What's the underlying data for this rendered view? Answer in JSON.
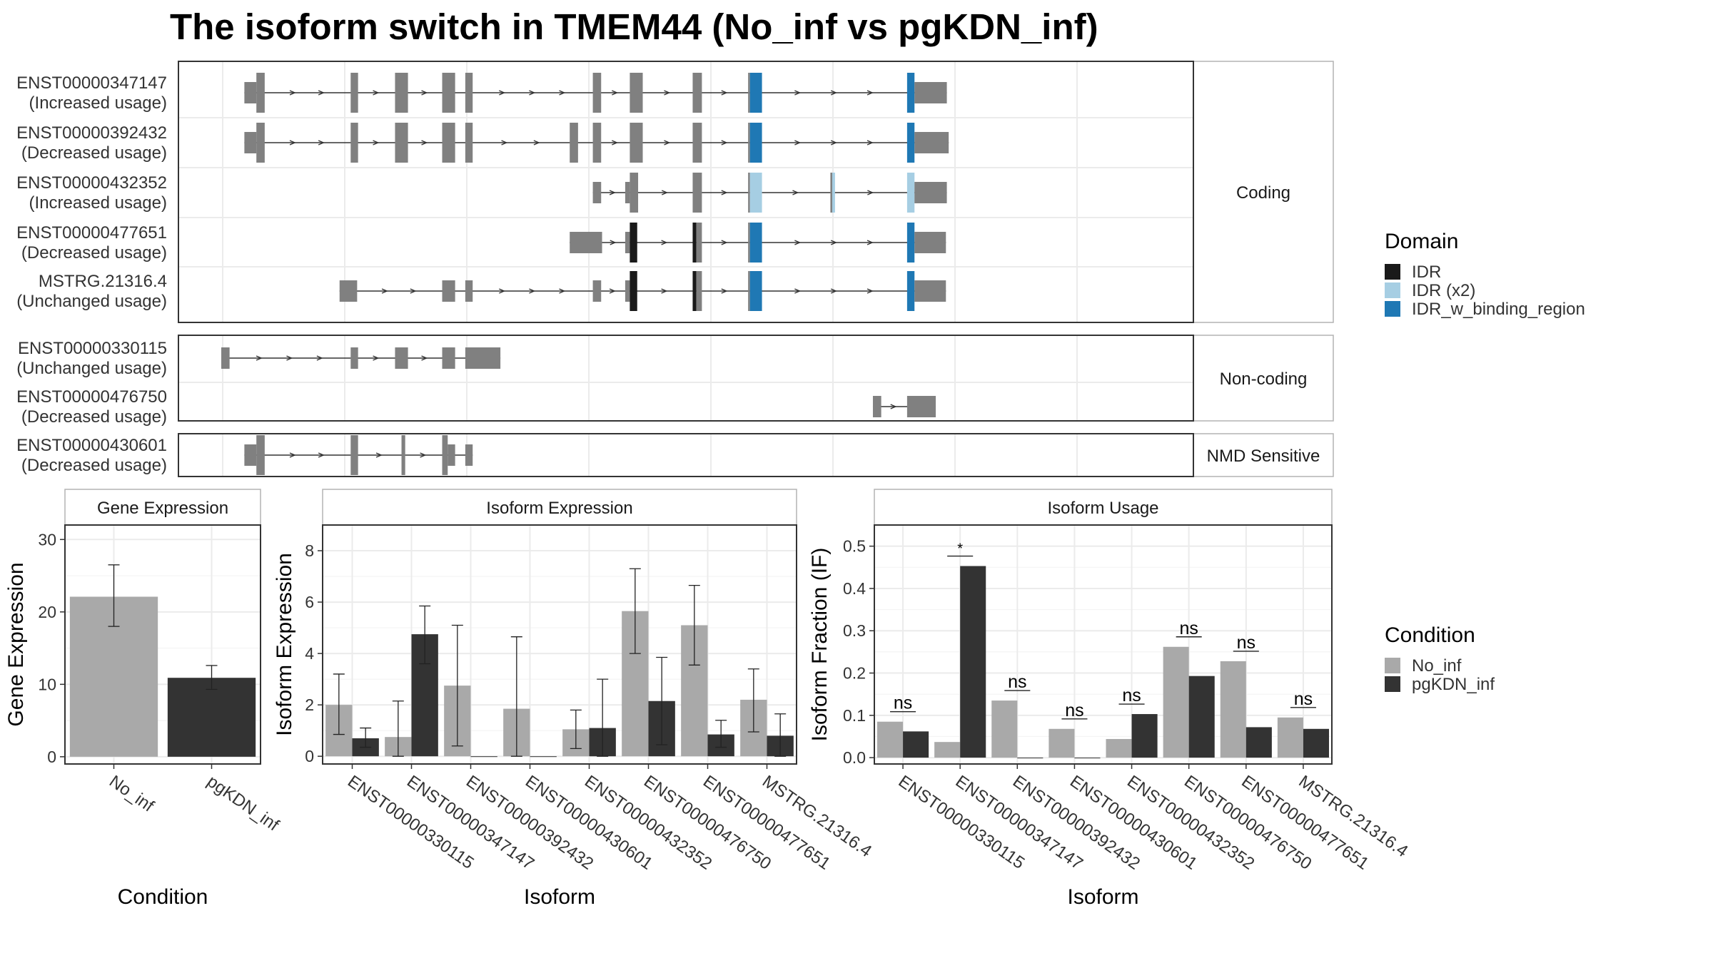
{
  "title": "The isoform switch in TMEM44 (No_inf vs pgKDN_inf)",
  "colors": {
    "exon": "#808080",
    "intron": "#333333",
    "idr": "#1a1a1a",
    "idr_x2": "#a6cee3",
    "idr_binding": "#1f78b4",
    "no_inf": "#a9a9a9",
    "pgkdn_inf": "#333333",
    "panel_border": "#333333",
    "grid": "#ebebeb"
  },
  "structure": {
    "x_range": [
      0,
      1000
    ],
    "panels": [
      {
        "label": "Coding",
        "transcripts": [
          {
            "id": "ENST00000347147",
            "usage": "(Increased usage)",
            "exons": [
              {
                "s": 25,
                "e": 38,
                "t": "thin"
              },
              {
                "s": 38,
                "e": 47,
                "t": "thick"
              },
              {
                "s": 140,
                "e": 148,
                "t": "thick"
              },
              {
                "s": 188,
                "e": 202,
                "t": "thick"
              },
              {
                "s": 239,
                "e": 253,
                "t": "thick"
              },
              {
                "s": 264,
                "e": 272,
                "t": "thick"
              },
              {
                "s": 402,
                "e": 411,
                "t": "thick"
              },
              {
                "s": 442,
                "e": 456,
                "t": "thick"
              },
              {
                "s": 510,
                "e": 520,
                "t": "thick"
              },
              {
                "s": 570,
                "e": 572,
                "t": "thick"
              },
              {
                "s": 572,
                "e": 585,
                "t": "thick",
                "d": "binding"
              },
              {
                "s": 742,
                "e": 750,
                "t": "thick",
                "d": "binding"
              },
              {
                "s": 750,
                "e": 785,
                "t": "thin"
              }
            ]
          },
          {
            "id": "ENST00000392432",
            "usage": "(Decreased usage)",
            "exons": [
              {
                "s": 25,
                "e": 38,
                "t": "thin"
              },
              {
                "s": 38,
                "e": 47,
                "t": "thick"
              },
              {
                "s": 140,
                "e": 148,
                "t": "thick"
              },
              {
                "s": 188,
                "e": 202,
                "t": "thick"
              },
              {
                "s": 239,
                "e": 253,
                "t": "thick"
              },
              {
                "s": 264,
                "e": 272,
                "t": "thick"
              },
              {
                "s": 377,
                "e": 386,
                "t": "thick"
              },
              {
                "s": 402,
                "e": 411,
                "t": "thick"
              },
              {
                "s": 442,
                "e": 456,
                "t": "thick"
              },
              {
                "s": 510,
                "e": 520,
                "t": "thick"
              },
              {
                "s": 570,
                "e": 572,
                "t": "thick"
              },
              {
                "s": 572,
                "e": 585,
                "t": "thick",
                "d": "binding"
              },
              {
                "s": 742,
                "e": 750,
                "t": "thick",
                "d": "binding"
              },
              {
                "s": 750,
                "e": 787,
                "t": "thin"
              }
            ]
          },
          {
            "id": "ENST00000432352",
            "usage": "(Increased usage)",
            "exons": [
              {
                "s": 402,
                "e": 411,
                "t": "thin"
              },
              {
                "s": 437,
                "e": 442,
                "t": "thin"
              },
              {
                "s": 442,
                "e": 451,
                "t": "thick"
              },
              {
                "s": 510,
                "e": 520,
                "t": "thick"
              },
              {
                "s": 570,
                "e": 572,
                "t": "thick"
              },
              {
                "s": 572,
                "e": 585,
                "t": "thick",
                "d": "x2"
              },
              {
                "s": 659,
                "e": 661,
                "t": "thick"
              },
              {
                "s": 661,
                "e": 664,
                "t": "thick",
                "d": "x2"
              },
              {
                "s": 742,
                "e": 750,
                "t": "thick",
                "d": "x2"
              },
              {
                "s": 750,
                "e": 785,
                "t": "thin"
              }
            ]
          },
          {
            "id": "ENST00000477651",
            "usage": "(Decreased usage)",
            "exons": [
              {
                "s": 377,
                "e": 412,
                "t": "thin"
              },
              {
                "s": 437,
                "e": 442,
                "t": "thin"
              },
              {
                "s": 442,
                "e": 450,
                "t": "thick",
                "d": "idr"
              },
              {
                "s": 510,
                "e": 514,
                "t": "thick",
                "d": "idr"
              },
              {
                "s": 514,
                "e": 520,
                "t": "thick"
              },
              {
                "s": 570,
                "e": 572,
                "t": "thick"
              },
              {
                "s": 572,
                "e": 585,
                "t": "thick",
                "d": "binding"
              },
              {
                "s": 742,
                "e": 750,
                "t": "thick",
                "d": "binding"
              },
              {
                "s": 750,
                "e": 784,
                "t": "thin"
              }
            ]
          },
          {
            "id": "MSTRG.21316.4",
            "usage": "(Unchanged usage)",
            "exons": [
              {
                "s": 128,
                "e": 147,
                "t": "thin"
              },
              {
                "s": 239,
                "e": 253,
                "t": "thin"
              },
              {
                "s": 264,
                "e": 272,
                "t": "thin"
              },
              {
                "s": 402,
                "e": 411,
                "t": "thin"
              },
              {
                "s": 437,
                "e": 442,
                "t": "thin"
              },
              {
                "s": 442,
                "e": 450,
                "t": "thick",
                "d": "idr"
              },
              {
                "s": 510,
                "e": 514,
                "t": "thick",
                "d": "idr"
              },
              {
                "s": 514,
                "e": 520,
                "t": "thick"
              },
              {
                "s": 570,
                "e": 572,
                "t": "thick"
              },
              {
                "s": 572,
                "e": 585,
                "t": "thick",
                "d": "binding"
              },
              {
                "s": 742,
                "e": 750,
                "t": "thick",
                "d": "binding"
              },
              {
                "s": 750,
                "e": 784,
                "t": "thin"
              }
            ]
          }
        ]
      },
      {
        "label": "Non-coding",
        "transcripts": [
          {
            "id": "ENST00000330115",
            "usage": "(Unchanged usage)",
            "exons": [
              {
                "s": 0,
                "e": 9,
                "t": "thin"
              },
              {
                "s": 140,
                "e": 148,
                "t": "thin"
              },
              {
                "s": 188,
                "e": 202,
                "t": "thin"
              },
              {
                "s": 239,
                "e": 253,
                "t": "thin"
              },
              {
                "s": 264,
                "e": 302,
                "t": "thin"
              }
            ]
          },
          {
            "id": "ENST00000476750",
            "usage": "(Decreased usage)",
            "exons": [
              {
                "s": 705,
                "e": 714,
                "t": "thin"
              },
              {
                "s": 742,
                "e": 773,
                "t": "thin"
              }
            ]
          }
        ]
      },
      {
        "label": "NMD Sensitive",
        "transcripts": [
          {
            "id": "ENST00000430601",
            "usage": "(Decreased usage)",
            "exons": [
              {
                "s": 25,
                "e": 38,
                "t": "thin"
              },
              {
                "s": 38,
                "e": 47,
                "t": "thick"
              },
              {
                "s": 140,
                "e": 148,
                "t": "thick"
              },
              {
                "s": 195,
                "e": 199,
                "t": "thick"
              },
              {
                "s": 239,
                "e": 245,
                "t": "thick"
              },
              {
                "s": 245,
                "e": 253,
                "t": "thin"
              },
              {
                "s": 264,
                "e": 272,
                "t": "thin"
              }
            ]
          }
        ]
      }
    ]
  },
  "legends": {
    "domain": {
      "title": "Domain",
      "items": [
        {
          "label": "IDR",
          "key": "idr"
        },
        {
          "label": "IDR (x2)",
          "key": "idr_x2"
        },
        {
          "label": "IDR_w_binding_region",
          "key": "idr_binding"
        }
      ]
    },
    "condition": {
      "title": "Condition",
      "items": [
        {
          "label": "No_inf",
          "key": "no_inf"
        },
        {
          "label": "pgKDN_inf",
          "key": "pgkdn_inf"
        }
      ]
    }
  },
  "chart_data": [
    {
      "type": "bar",
      "title": "Gene Expression",
      "xlabel": "Condition",
      "ylabel": "Gene Expression",
      "categories": [
        "No_inf",
        "pgKDN_inf"
      ],
      "values": [
        22.1,
        10.9
      ],
      "error_low": [
        18.0,
        9.3
      ],
      "error_high": [
        26.5,
        12.6
      ],
      "ylim": [
        -1,
        32
      ],
      "yticks": [
        0,
        10,
        20,
        30
      ],
      "grid": true
    },
    {
      "type": "bar",
      "title": "Isoform Expression",
      "xlabel": "Isoform",
      "ylabel": "Isoform Expression",
      "categories": [
        "ENST00000330115",
        "ENST00000347147",
        "ENST00000392432",
        "ENST00000430601",
        "ENST00000432352",
        "ENST00000476750",
        "ENST00000477651",
        "MSTRG.21316.4"
      ],
      "series": [
        {
          "name": "No_inf",
          "values": [
            2.0,
            0.75,
            2.75,
            1.85,
            1.05,
            5.65,
            5.1,
            2.2
          ],
          "error_low": [
            0.85,
            0.0,
            0.4,
            0.0,
            0.3,
            4.0,
            3.55,
            0.95
          ],
          "error_high": [
            3.2,
            2.15,
            5.1,
            4.65,
            1.8,
            7.3,
            6.65,
            3.4
          ]
        },
        {
          "name": "pgKDN_inf",
          "values": [
            0.7,
            4.75,
            0.0,
            0.0,
            1.1,
            2.15,
            0.85,
            0.8
          ],
          "error_low": [
            0.35,
            3.6,
            null,
            null,
            0.0,
            0.45,
            0.35,
            0.0
          ],
          "error_high": [
            1.1,
            5.85,
            null,
            null,
            3.0,
            3.85,
            1.4,
            1.65
          ]
        }
      ],
      "ylim": [
        -0.3,
        9
      ],
      "yticks": [
        0,
        2,
        4,
        6,
        8
      ],
      "grid": true
    },
    {
      "type": "bar",
      "title": "Isoform Usage",
      "xlabel": "Isoform",
      "ylabel": "Isoform Fraction (IF)",
      "categories": [
        "ENST00000330115",
        "ENST00000347147",
        "ENST00000392432",
        "ENST00000430601",
        "ENST00000432352",
        "ENST00000476750",
        "ENST00000477651",
        "MSTRG.21316.4"
      ],
      "series": [
        {
          "name": "No_inf",
          "values": [
            0.085,
            0.037,
            0.135,
            0.068,
            0.044,
            0.262,
            0.228,
            0.095
          ]
        },
        {
          "name": "pgKDN_inf",
          "values": [
            0.062,
            0.453,
            0.0,
            0.0,
            0.103,
            0.193,
            0.072,
            0.068
          ]
        }
      ],
      "significance": [
        "ns",
        "*",
        "ns",
        "ns",
        "ns",
        "ns",
        "ns",
        "ns"
      ],
      "ylim": [
        -0.015,
        0.55
      ],
      "yticks": [
        0.0,
        0.1,
        0.2,
        0.3,
        0.4,
        0.5
      ],
      "ytick_labels": [
        "0.0",
        "0.1",
        "0.2",
        "0.3",
        "0.4",
        "0.5"
      ],
      "grid": true
    }
  ]
}
